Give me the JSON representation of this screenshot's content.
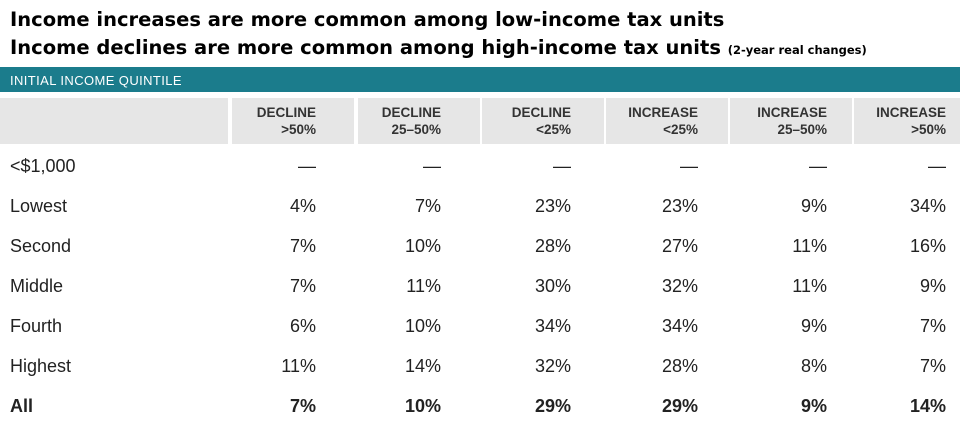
{
  "title": {
    "line1": "Income increases are more common among low-income tax units",
    "line2": "Income declines are more common among high-income tax units",
    "note": "(2-year real changes)"
  },
  "band_label": "INITIAL INCOME QUINTILE",
  "colors": {
    "band": "#1b7c8c",
    "header_fill": "#e6e6e6"
  },
  "chart_data": {
    "type": "table",
    "columns": [
      {
        "line1": "DECLINE",
        "line2": ">50%"
      },
      {
        "line1": "DECLINE",
        "line2": "25–50%"
      },
      {
        "line1": "DECLINE",
        "line2": "<25%"
      },
      {
        "line1": "INCREASE",
        "line2": "<25%"
      },
      {
        "line1": "INCREASE",
        "line2": "25–50%"
      },
      {
        "line1": "INCREASE",
        "line2": ">50%"
      }
    ],
    "rows": [
      {
        "label": "<$1,000",
        "values": [
          "—",
          "—",
          "—",
          "—",
          "—",
          "—"
        ],
        "bold": false
      },
      {
        "label": "Lowest",
        "values": [
          "4%",
          "7%",
          "23%",
          "23%",
          "9%",
          "34%"
        ],
        "bold": false
      },
      {
        "label": "Second",
        "values": [
          "7%",
          "10%",
          "28%",
          "27%",
          "11%",
          "16%"
        ],
        "bold": false
      },
      {
        "label": "Middle",
        "values": [
          "7%",
          "11%",
          "30%",
          "32%",
          "11%",
          "9%"
        ],
        "bold": false
      },
      {
        "label": "Fourth",
        "values": [
          "6%",
          "10%",
          "34%",
          "34%",
          "9%",
          "7%"
        ],
        "bold": false
      },
      {
        "label": "Highest",
        "values": [
          "11%",
          "14%",
          "32%",
          "28%",
          "8%",
          "7%"
        ],
        "bold": false
      },
      {
        "label": "All",
        "values": [
          "7%",
          "10%",
          "29%",
          "29%",
          "9%",
          "14%"
        ],
        "bold": true
      }
    ]
  }
}
